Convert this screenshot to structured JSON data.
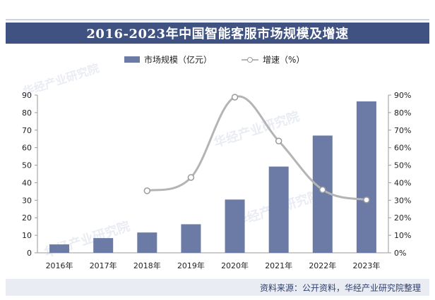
{
  "title": "2016-2023年中国智能客服市场规模及增速",
  "legend": {
    "bar_label": "市场规模（亿元）",
    "line_label": "增速（%）"
  },
  "source": "资料来源：公开资料，华经产业研究院整理",
  "watermark": {
    "brand": "华经产业研究院",
    "url": "www.huaon.com"
  },
  "colors": {
    "title_bg": "#3f5282",
    "bar": "#6b7ba5",
    "line": "#b4b4b4",
    "footer_bg": "#e9ecf3"
  },
  "chart_data": {
    "type": "bar",
    "categories": [
      "2016年",
      "2017年",
      "2018年",
      "2019年",
      "2020年",
      "2021年",
      "2022年",
      "2023年"
    ],
    "series": [
      {
        "name": "市场规模（亿元）",
        "type": "bar",
        "axis": "left",
        "values": [
          4.8,
          8.4,
          11.6,
          16.3,
          30.4,
          49.2,
          66.9,
          86.4
        ]
      },
      {
        "name": "增速（%）",
        "type": "line",
        "axis": "right",
        "values": [
          null,
          null,
          35.4,
          43.0,
          88.8,
          63.8,
          36.0,
          30.2
        ]
      }
    ],
    "y_left": {
      "min": 0,
      "max": 90,
      "ticks": [
        0,
        10,
        20,
        30,
        40,
        50,
        60,
        70,
        80,
        90
      ]
    },
    "y_right": {
      "min": 0,
      "max": 90,
      "ticks": [
        "0%",
        "10%",
        "20%",
        "30%",
        "40%",
        "50%",
        "60%",
        "70%",
        "80%",
        "90%"
      ]
    },
    "legend_position": "top-center",
    "grid": false
  }
}
